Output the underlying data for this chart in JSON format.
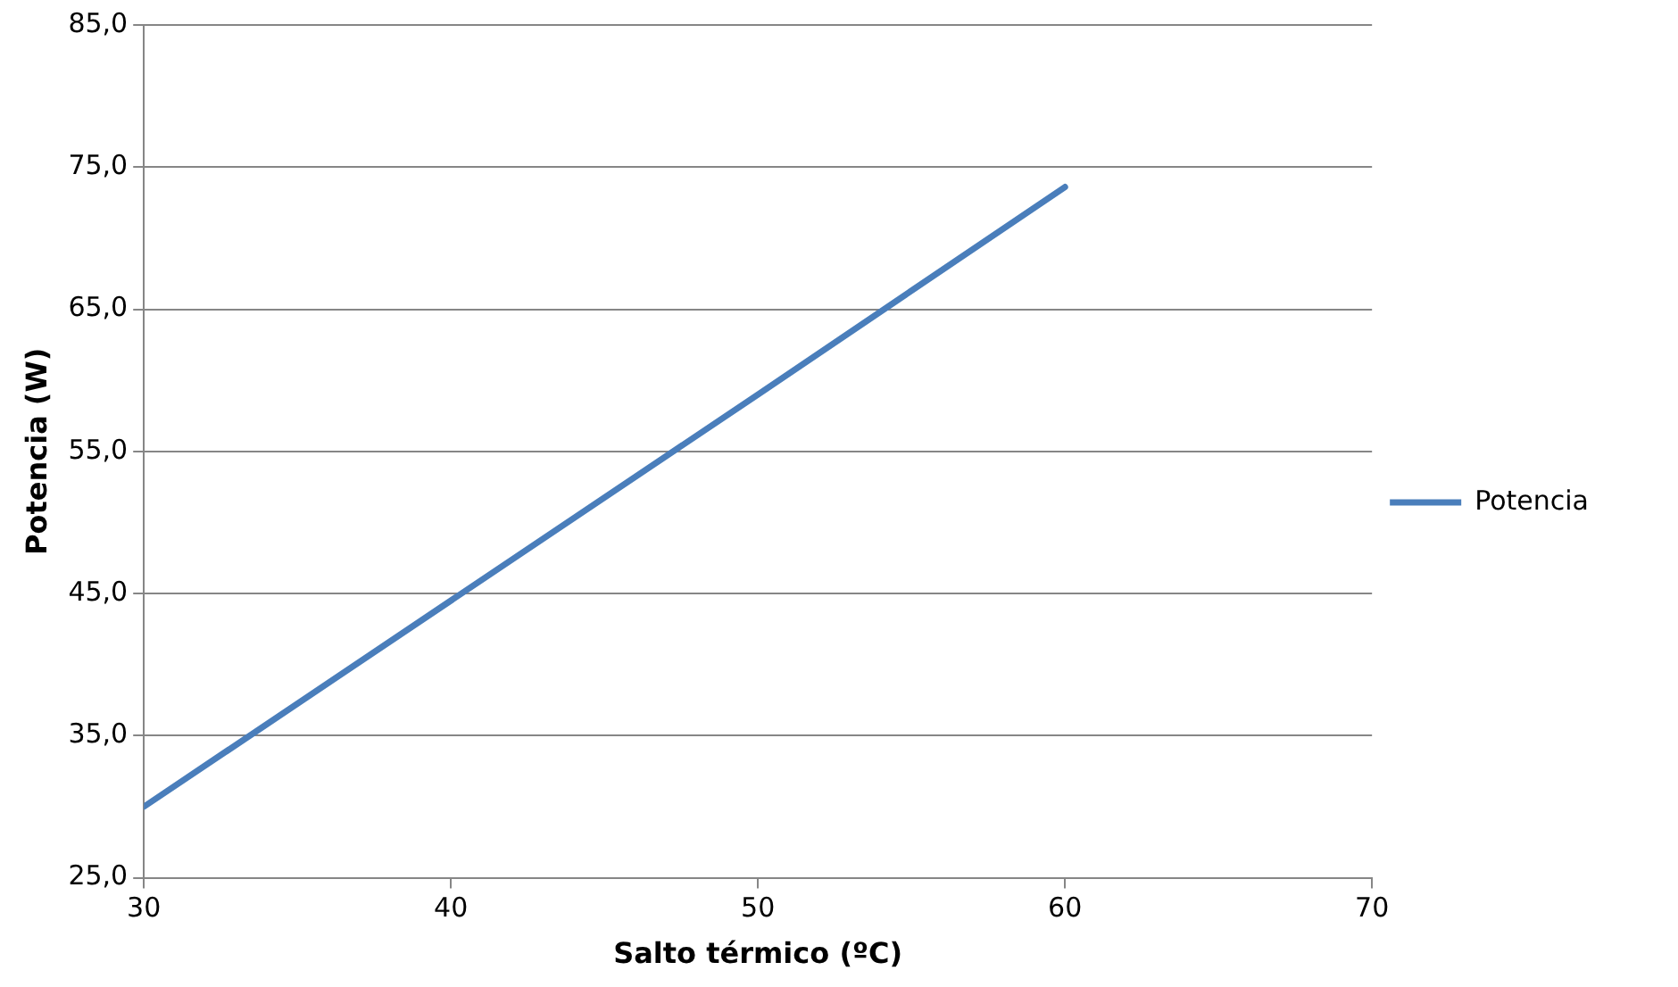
{
  "chart_data": {
    "type": "line",
    "xlabel": "Salto térmico (ºC)",
    "ylabel": "Potencia (W)",
    "series": [
      {
        "name": "Potencia",
        "color": "#4a7ebb",
        "x": [
          30,
          40,
          50,
          60
        ],
        "values": [
          30.0,
          44.5,
          59.0,
          73.6
        ]
      }
    ],
    "xlim": [
      30,
      70
    ],
    "xticks": [
      30,
      40,
      50,
      60,
      70
    ],
    "ylim": [
      25,
      85
    ],
    "yticks": [
      {
        "value": 25,
        "label": "25,0"
      },
      {
        "value": 35,
        "label": "35,0"
      },
      {
        "value": 45,
        "label": "45,0"
      },
      {
        "value": 55,
        "label": "55,0"
      },
      {
        "value": 65,
        "label": "65,0"
      },
      {
        "value": 75,
        "label": "75,0"
      },
      {
        "value": 85,
        "label": "85,0"
      }
    ],
    "grid": "y",
    "legend": "right",
    "marker": "none",
    "line_style": "solid"
  }
}
